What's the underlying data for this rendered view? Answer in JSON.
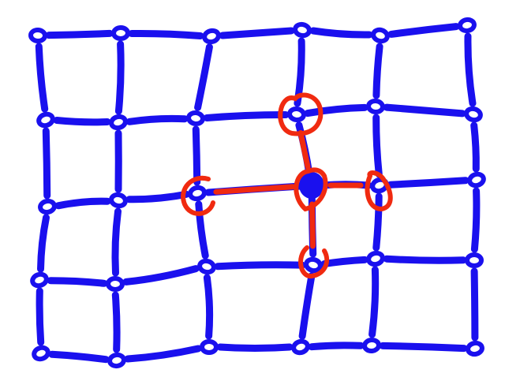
{
  "colors": {
    "background": "#ffffff",
    "grid": "#1a10ee",
    "highlight": "#f02a10"
  },
  "diagram": {
    "type": "hand-drawn lattice",
    "rows": 5,
    "columns": 6,
    "center_node": {
      "row": 2,
      "col": 3,
      "filled": true
    },
    "highlighted_neighbors": [
      {
        "row": 1,
        "col": 3,
        "direction": "up"
      },
      {
        "row": 3,
        "col": 3,
        "direction": "down"
      },
      {
        "row": 2,
        "col": 2,
        "direction": "left"
      },
      {
        "row": 2,
        "col": 4,
        "direction": "right"
      }
    ]
  }
}
